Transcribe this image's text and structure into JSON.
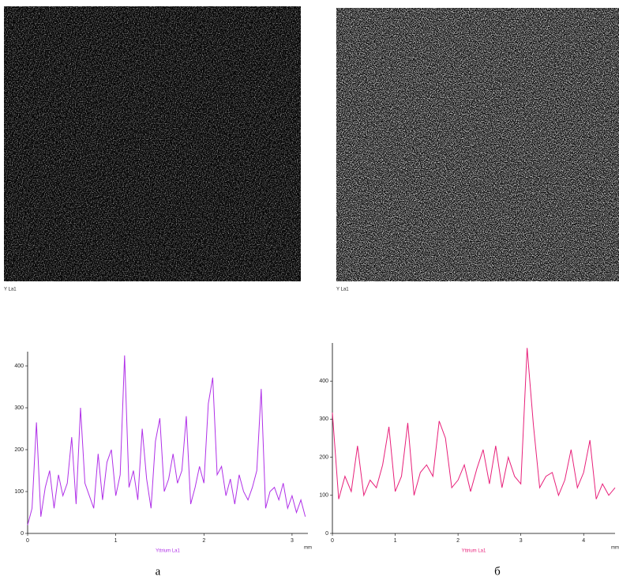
{
  "chart_data": [
    {
      "type": "line",
      "map_label": "Y La1",
      "xlabel": "Yttrium La1",
      "xunit": "mm",
      "caption": "а",
      "x": [
        0,
        0.05,
        0.1,
        0.15,
        0.2,
        0.25,
        0.3,
        0.35,
        0.4,
        0.45,
        0.5,
        0.55,
        0.6,
        0.65,
        0.7,
        0.75,
        0.8,
        0.85,
        0.9,
        0.95,
        1.0,
        1.05,
        1.1,
        1.15,
        1.2,
        1.25,
        1.3,
        1.35,
        1.4,
        1.45,
        1.5,
        1.55,
        1.6,
        1.65,
        1.7,
        1.75,
        1.8,
        1.85,
        1.9,
        1.95,
        2.0,
        2.05,
        2.1,
        2.15,
        2.2,
        2.25,
        2.3,
        2.35,
        2.4,
        2.45,
        2.5,
        2.55,
        2.6,
        2.65,
        2.7,
        2.75,
        2.8,
        2.85,
        2.9,
        2.95,
        3.0,
        3.05,
        3.1,
        3.15
      ],
      "series": [
        {
          "color": "#b030e8",
          "values": [
            20,
            60,
            265,
            40,
            110,
            150,
            60,
            140,
            90,
            120,
            230,
            70,
            300,
            120,
            90,
            60,
            190,
            80,
            170,
            200,
            90,
            140,
            425,
            110,
            150,
            80,
            250,
            130,
            60,
            220,
            275,
            100,
            130,
            190,
            120,
            150,
            280,
            70,
            110,
            160,
            120,
            310,
            372,
            140,
            160,
            90,
            130,
            70,
            140,
            100,
            80,
            110,
            150,
            345,
            60,
            100,
            110,
            80,
            120,
            60,
            90,
            50,
            80,
            40
          ]
        }
      ],
      "xlim": [
        0,
        3.18
      ],
      "xticks": [
        0,
        1,
        2,
        3
      ],
      "ylim": [
        0,
        434
      ],
      "yticks": [
        0,
        100,
        200,
        300,
        400
      ]
    },
    {
      "type": "line",
      "map_label": "Y La1",
      "xlabel": "Yttrium La1",
      "xunit": "mm",
      "caption": "б",
      "x": [
        0,
        0.1,
        0.2,
        0.3,
        0.4,
        0.5,
        0.6,
        0.7,
        0.8,
        0.9,
        1.0,
        1.1,
        1.2,
        1.3,
        1.4,
        1.5,
        1.6,
        1.7,
        1.8,
        1.9,
        2.0,
        2.1,
        2.2,
        2.3,
        2.4,
        2.5,
        2.6,
        2.7,
        2.8,
        2.9,
        3.0,
        3.1,
        3.2,
        3.3,
        3.4,
        3.5,
        3.6,
        3.7,
        3.8,
        3.9,
        4.0,
        4.1,
        4.2,
        4.3,
        4.4,
        4.5
      ],
      "series": [
        {
          "color": "#e8207a",
          "values": [
            317,
            90,
            150,
            110,
            230,
            100,
            140,
            120,
            180,
            280,
            110,
            150,
            290,
            100,
            160,
            180,
            150,
            295,
            250,
            120,
            140,
            180,
            110,
            170,
            220,
            130,
            230,
            120,
            200,
            150,
            130,
            487,
            285,
            120,
            150,
            160,
            100,
            140,
            220,
            120,
            160,
            245,
            90,
            130,
            100,
            120
          ]
        }
      ],
      "xlim": [
        0,
        4.5
      ],
      "xticks": [
        0,
        1,
        2,
        3,
        4
      ],
      "ylim": [
        0,
        500
      ],
      "yticks": [
        0,
        100,
        200,
        300,
        400
      ]
    }
  ]
}
